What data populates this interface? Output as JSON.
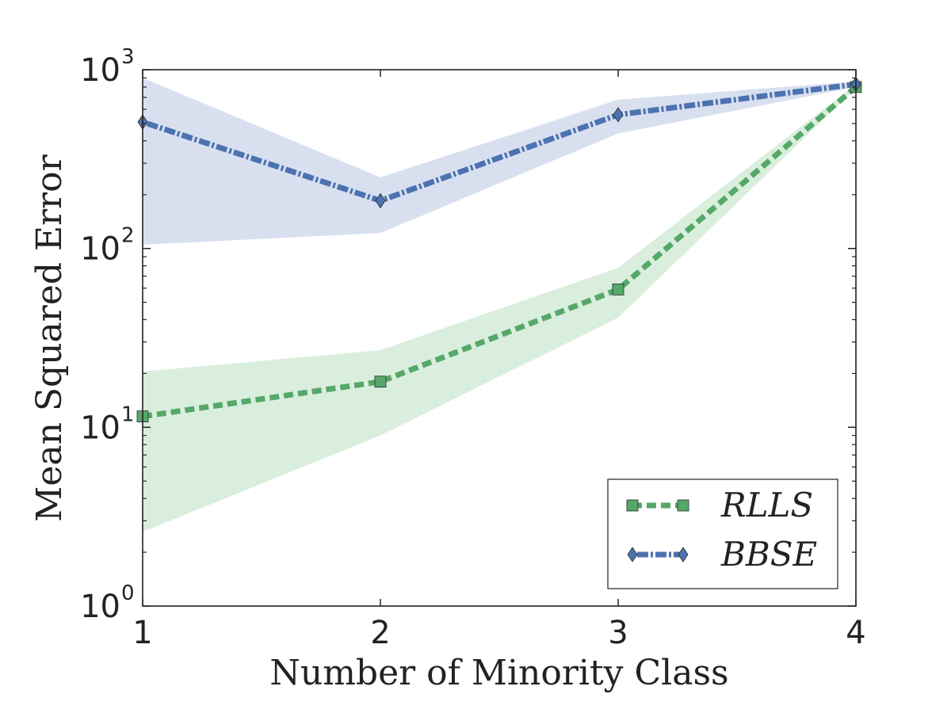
{
  "chart_data": {
    "type": "line",
    "title": "",
    "xlabel": "Number of Minority Class",
    "ylabel": "Mean Squared Error",
    "yscale": "log",
    "xlim": [
      1,
      4
    ],
    "ylim": [
      1,
      1000
    ],
    "x": [
      1,
      2,
      3,
      4
    ],
    "xticks": [
      "1",
      "2",
      "3",
      "4"
    ],
    "yticks": [
      {
        "value": 1,
        "base": "10",
        "exp": "0"
      },
      {
        "value": 10,
        "base": "10",
        "exp": "1"
      },
      {
        "value": 100,
        "base": "10",
        "exp": "2"
      },
      {
        "value": 1000,
        "base": "10",
        "exp": "3"
      }
    ],
    "grid": false,
    "legend": "bottom-right",
    "series": [
      {
        "name": "RLLS",
        "color": "#55a868",
        "band_color": "#d5ecd9",
        "marker": "square",
        "linestyle": "dashed",
        "values": [
          11.5,
          18,
          59,
          800
        ],
        "lower": [
          2.6,
          9,
          41,
          790
        ],
        "upper": [
          20.5,
          27,
          78,
          830
        ]
      },
      {
        "name": "BBSE",
        "color": "#4c72b0",
        "band_color": "#d4ddee",
        "marker": "diamond",
        "linestyle": "dashdot",
        "values": [
          510,
          185,
          560,
          830
        ],
        "lower": [
          105,
          122,
          440,
          800
        ],
        "upper": [
          900,
          250,
          680,
          860
        ]
      }
    ]
  }
}
